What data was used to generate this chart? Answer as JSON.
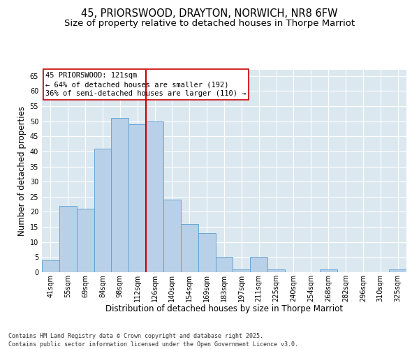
{
  "title1": "45, PRIORSWOOD, DRAYTON, NORWICH, NR8 6FW",
  "title2": "Size of property relative to detached houses in Thorpe Marriot",
  "xlabel": "Distribution of detached houses by size in Thorpe Marriot",
  "ylabel": "Number of detached properties",
  "categories": [
    "41sqm",
    "55sqm",
    "69sqm",
    "84sqm",
    "98sqm",
    "112sqm",
    "126sqm",
    "140sqm",
    "154sqm",
    "169sqm",
    "183sqm",
    "197sqm",
    "211sqm",
    "225sqm",
    "240sqm",
    "254sqm",
    "268sqm",
    "282sqm",
    "296sqm",
    "310sqm",
    "325sqm"
  ],
  "values": [
    4,
    22,
    21,
    41,
    51,
    49,
    50,
    24,
    16,
    13,
    5,
    1,
    5,
    1,
    0,
    0,
    1,
    0,
    0,
    0,
    1
  ],
  "bar_color": "#b8d0e8",
  "bar_edge_color": "#5a9fd4",
  "vline_color": "#cc0000",
  "annotation_text": "45 PRIORSWOOD: 121sqm\n← 64% of detached houses are smaller (192)\n36% of semi-detached houses are larger (110) →",
  "annotation_box_color": "white",
  "annotation_box_edge": "#cc0000",
  "ylim": [
    0,
    67
  ],
  "yticks": [
    0,
    5,
    10,
    15,
    20,
    25,
    30,
    35,
    40,
    45,
    50,
    55,
    60,
    65
  ],
  "background_color": "#dce8f0",
  "grid_color": "white",
  "footer": "Contains HM Land Registry data © Crown copyright and database right 2025.\nContains public sector information licensed under the Open Government Licence v3.0.",
  "title1_fontsize": 10.5,
  "title2_fontsize": 9.5,
  "xlabel_fontsize": 8.5,
  "ylabel_fontsize": 8.5,
  "tick_fontsize": 7,
  "annotation_fontsize": 7.5,
  "footer_fontsize": 6
}
